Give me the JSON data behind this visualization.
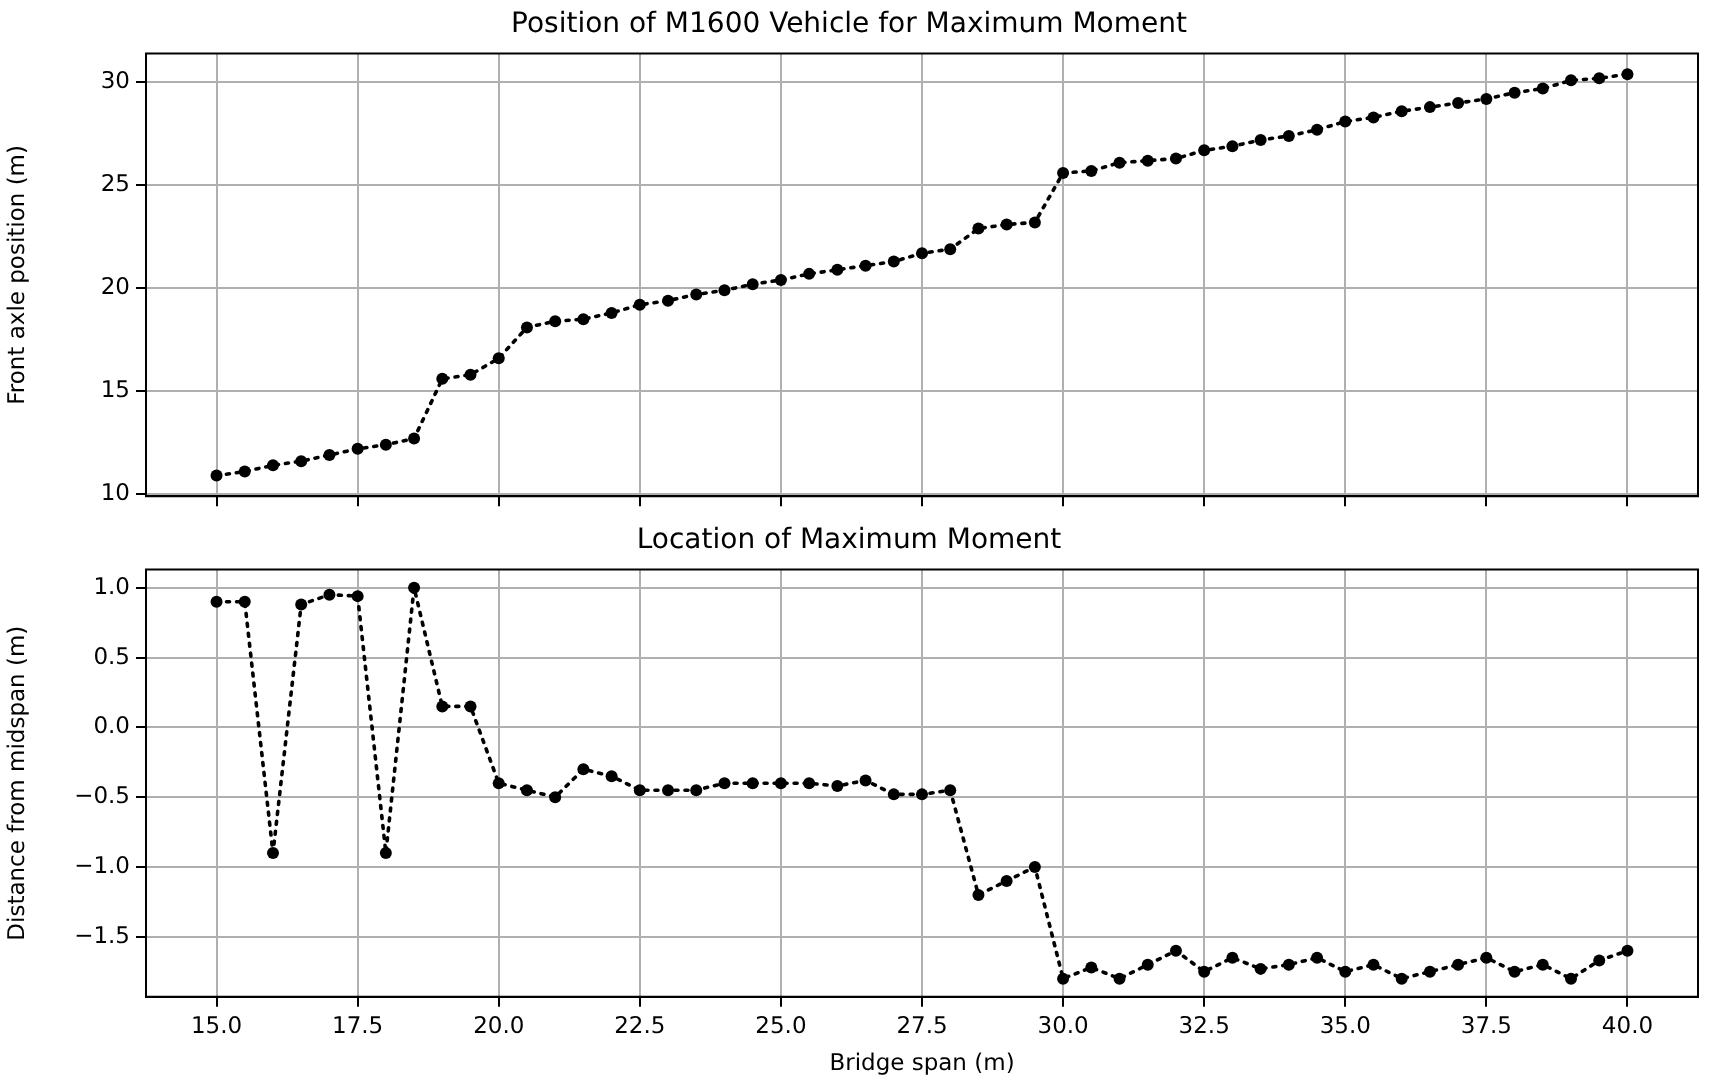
{
  "chart_data": [
    {
      "type": "line",
      "title": "Position of M1600 Vehicle for Maximum Moment",
      "ylabel": "Front axle position (m)",
      "x": [
        15,
        15.5,
        16,
        16.5,
        17,
        17.5,
        18,
        18.5,
        19,
        19.5,
        20,
        20.5,
        21,
        21.5,
        22,
        22.5,
        23,
        23.5,
        24,
        24.5,
        25,
        25.5,
        26,
        26.5,
        27,
        27.5,
        28,
        28.5,
        29,
        29.5,
        30,
        30.5,
        31,
        31.5,
        32,
        32.5,
        33,
        33.5,
        34,
        34.5,
        35,
        35.5,
        36,
        36.5,
        37,
        37.5,
        38,
        38.5,
        39,
        39.5,
        40
      ],
      "series": [
        {
          "color": "#000000",
          "values": [
            10.9,
            11.1,
            11.4,
            11.6,
            11.9,
            12.2,
            12.4,
            12.7,
            15.6,
            15.8,
            16.6,
            18.1,
            18.4,
            18.5,
            18.8,
            19.2,
            19.4,
            19.7,
            19.9,
            20.2,
            20.4,
            20.7,
            20.9,
            21.1,
            21.3,
            21.7,
            21.9,
            22.9,
            23.1,
            23.2,
            25.6,
            25.7,
            26.1,
            26.2,
            26.3,
            26.7,
            26.9,
            27.2,
            27.4,
            27.7,
            28.1,
            28.3,
            28.6,
            28.8,
            29.0,
            29.2,
            29.5,
            29.7,
            30.1,
            30.2,
            30.4
          ]
        }
      ],
      "xlim": [
        13.75,
        41.25
      ],
      "xticks": [
        15,
        17.5,
        20,
        22.5,
        25,
        27.5,
        30,
        32.5,
        35,
        37.5,
        40
      ],
      "ylim": [
        9.9,
        31.4
      ],
      "yticks": [
        10,
        15,
        20,
        25,
        30
      ],
      "tick_labels": "y",
      "grid": true,
      "marker": "circle",
      "line_style": "dotted"
    },
    {
      "type": "line",
      "title": "Location of Maximum Moment",
      "xlabel": "Bridge span (m)",
      "ylabel": "Distance from midspan (m)",
      "x": [
        15,
        15.5,
        16,
        16.5,
        17,
        17.5,
        18,
        18.5,
        19,
        19.5,
        20,
        20.5,
        21,
        21.5,
        22,
        22.5,
        23,
        23.5,
        24,
        24.5,
        25,
        25.5,
        26,
        26.5,
        27,
        27.5,
        28,
        28.5,
        29,
        29.5,
        30,
        30.5,
        31,
        31.5,
        32,
        32.5,
        33,
        33.5,
        34,
        34.5,
        35,
        35.5,
        36,
        36.5,
        37,
        37.5,
        38,
        38.5,
        39,
        39.5,
        40
      ],
      "series": [
        {
          "color": "#000000",
          "values": [
            0.9,
            0.9,
            -0.9,
            0.88,
            0.95,
            0.94,
            -0.9,
            1.0,
            0.15,
            0.15,
            -0.4,
            -0.45,
            -0.5,
            -0.3,
            -0.35,
            -0.45,
            -0.45,
            -0.45,
            -0.4,
            -0.4,
            -0.4,
            -0.4,
            -0.42,
            -0.38,
            -0.48,
            -0.48,
            -0.45,
            -1.2,
            -1.1,
            -1.0,
            -1.8,
            -1.72,
            -1.8,
            -1.7,
            -1.6,
            -1.75,
            -1.65,
            -1.73,
            -1.7,
            -1.65,
            -1.75,
            -1.7,
            -1.8,
            -1.75,
            -1.7,
            -1.65,
            -1.75,
            -1.7,
            -1.8,
            -1.67,
            -1.6
          ]
        }
      ],
      "xlim": [
        13.75,
        41.25
      ],
      "xticks": [
        {
          "value": 15,
          "label": "15.0"
        },
        {
          "value": 17.5,
          "label": "17.5"
        },
        {
          "value": 20,
          "label": "20.0"
        },
        {
          "value": 22.5,
          "label": "22.5"
        },
        {
          "value": 25,
          "label": "25.0"
        },
        {
          "value": 27.5,
          "label": "27.5"
        },
        {
          "value": 30,
          "label": "30.0"
        },
        {
          "value": 32.5,
          "label": "32.5"
        },
        {
          "value": 35,
          "label": "35.0"
        },
        {
          "value": 37.5,
          "label": "37.5"
        },
        {
          "value": 40,
          "label": "40.0"
        }
      ],
      "ylim": [
        -1.93,
        1.13
      ],
      "yticks": [
        {
          "value": -1.5,
          "label": "−1.5"
        },
        {
          "value": -1,
          "label": "−1.0"
        },
        {
          "value": -0.5,
          "label": "−0.5"
        },
        {
          "value": 0,
          "label": "0.0"
        },
        {
          "value": 0.5,
          "label": "0.5"
        },
        {
          "value": 1,
          "label": "1.0"
        }
      ],
      "grid": true,
      "marker": "circle",
      "line_style": "dotted"
    }
  ]
}
